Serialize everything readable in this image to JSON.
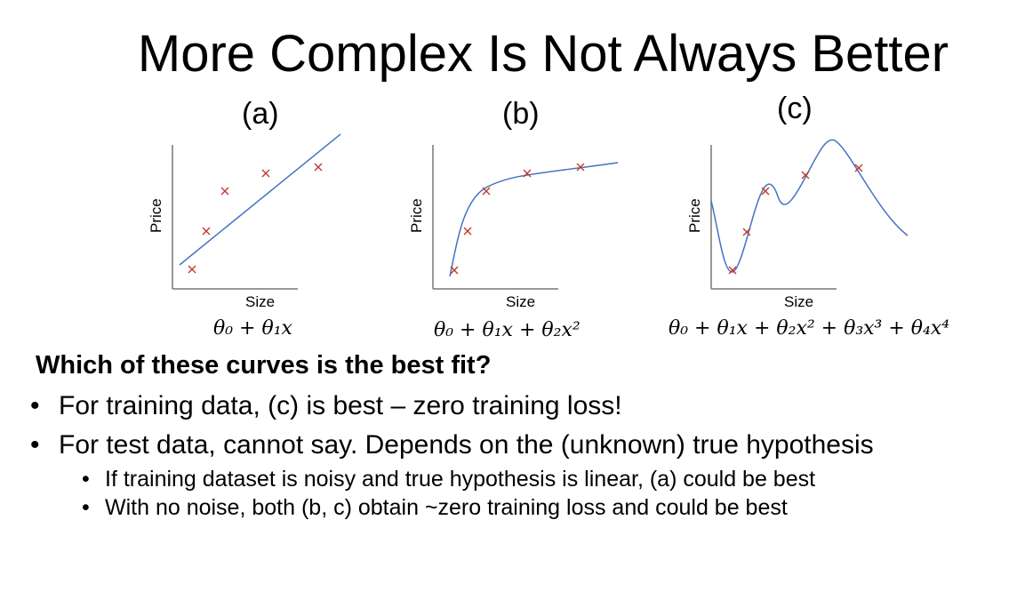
{
  "title": "More Complex Is Not Always Better",
  "panels": [
    {
      "label": "(a)",
      "xlabel": "Size",
      "ylabel": "Price",
      "formula": "θ₀ + θ₁x",
      "fit": "linear"
    },
    {
      "label": "(b)",
      "xlabel": "Size",
      "ylabel": "Price",
      "formula": "θ₀ + θ₁x + θ₂x²",
      "fit": "quadratic"
    },
    {
      "label": "(c)",
      "xlabel": "Size",
      "ylabel": "Price",
      "formula": "θ₀ + θ₁x + θ₂x² + θ₃x³ + θ₄x⁴",
      "fit": "quartic"
    }
  ],
  "question": "Which of these curves is the best fit?",
  "bullets": [
    {
      "text": "For training data, (c) is best – zero training loss!"
    },
    {
      "text": "For test data, cannot say. Depends on the (unknown) true hypothesis"
    }
  ],
  "sub_bullets": [
    {
      "text": "If training dataset is noisy and true hypothesis is linear, (a) could be best"
    },
    {
      "text": "With no noise, both (b, c) obtain ~zero training loss and could be best"
    }
  ],
  "bullet_char": "•",
  "colors": {
    "curve": "#4472C4",
    "points": "#C0392B",
    "axes": "#777777"
  }
}
